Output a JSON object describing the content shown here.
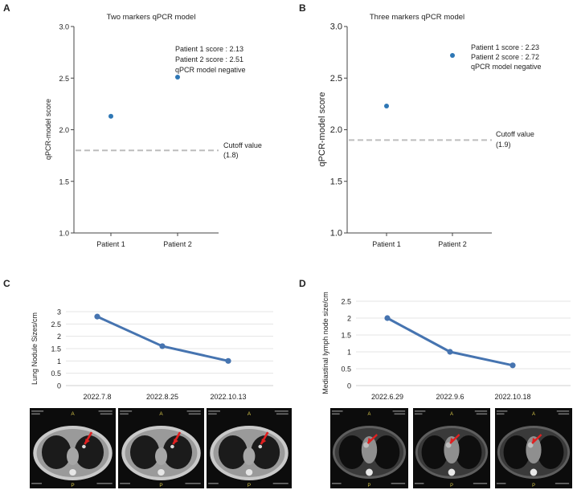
{
  "colors": {
    "point": "#2e77b5",
    "line": "#4674b0",
    "cutoff": "#bdbdbd",
    "arrow": "#e02020",
    "ct_bg": "#0c0c0c"
  },
  "panel_labels": {
    "a": "A",
    "b": "B",
    "c": "C",
    "d": "D"
  },
  "chart_data": [
    {
      "id": "A",
      "type": "scatter",
      "title": "Two markers qPCR model",
      "xlabel": "",
      "ylabel": "qPCR-model score",
      "categories": [
        "Patient 1",
        "Patient 2"
      ],
      "values": [
        2.13,
        2.51
      ],
      "ylim": [
        1.0,
        3.0
      ],
      "yticks": [
        "1.0",
        "1.5",
        "2.0",
        "2.5",
        "3.0"
      ],
      "cutoff": 1.8,
      "cutoff_label": [
        "Cutoff value",
        "(1.8)"
      ],
      "annotation": [
        "Patient 1 score : 2.13",
        "Patient 2 score : 2.51",
        "qPCR model negative"
      ]
    },
    {
      "id": "B",
      "type": "scatter",
      "title": "Three markers qPCR model",
      "xlabel": "",
      "ylabel": "qPCR-model score",
      "categories": [
        "Patient 1",
        "Patient 2"
      ],
      "values": [
        2.23,
        2.72
      ],
      "ylim": [
        1.0,
        3.0
      ],
      "yticks": [
        "1.0",
        "1.5",
        "2.0",
        "2.5",
        "3.0"
      ],
      "cutoff": 1.9,
      "cutoff_label": [
        "Cutoff value",
        "(1.9)"
      ],
      "annotation": [
        "Patient 1 score : 2.23",
        "Patient 2 score : 2.72",
        "qPCR model negative"
      ]
    },
    {
      "id": "C",
      "type": "line",
      "title": "",
      "xlabel": "",
      "ylabel": "Lung Nodule Sizes/cm",
      "categories": [
        "2022.7.8",
        "2022.8.25",
        "2022.10.13"
      ],
      "values": [
        2.8,
        1.6,
        1.0
      ],
      "ylim": [
        0,
        3
      ],
      "yticks": [
        "0",
        "0.5",
        "1",
        "1.5",
        "2",
        "2.5",
        "3"
      ],
      "grid": true
    },
    {
      "id": "D",
      "type": "line",
      "title": "",
      "xlabel": "",
      "ylabel": "Mediastinal lymph node size/cm",
      "categories": [
        "2022.6.29",
        "2022.9.6",
        "2022.10.18"
      ],
      "values": [
        2.0,
        1.0,
        0.6
      ],
      "ylim": [
        0,
        2.5
      ],
      "yticks": [
        "0",
        "0.5",
        "1",
        "1.5",
        "2",
        "2.5"
      ],
      "grid": true
    }
  ],
  "ct_images": {
    "c": [
      {
        "name": "ct-lung-2022-7-8",
        "window": "lung"
      },
      {
        "name": "ct-lung-2022-8-25",
        "window": "lung"
      },
      {
        "name": "ct-lung-2022-10-13",
        "window": "lung"
      }
    ],
    "d": [
      {
        "name": "ct-mediastinal-2022-6-29",
        "window": "mediastinal"
      },
      {
        "name": "ct-mediastinal-2022-9-6",
        "window": "mediastinal"
      },
      {
        "name": "ct-mediastinal-2022-10-18",
        "window": "mediastinal"
      }
    ]
  }
}
